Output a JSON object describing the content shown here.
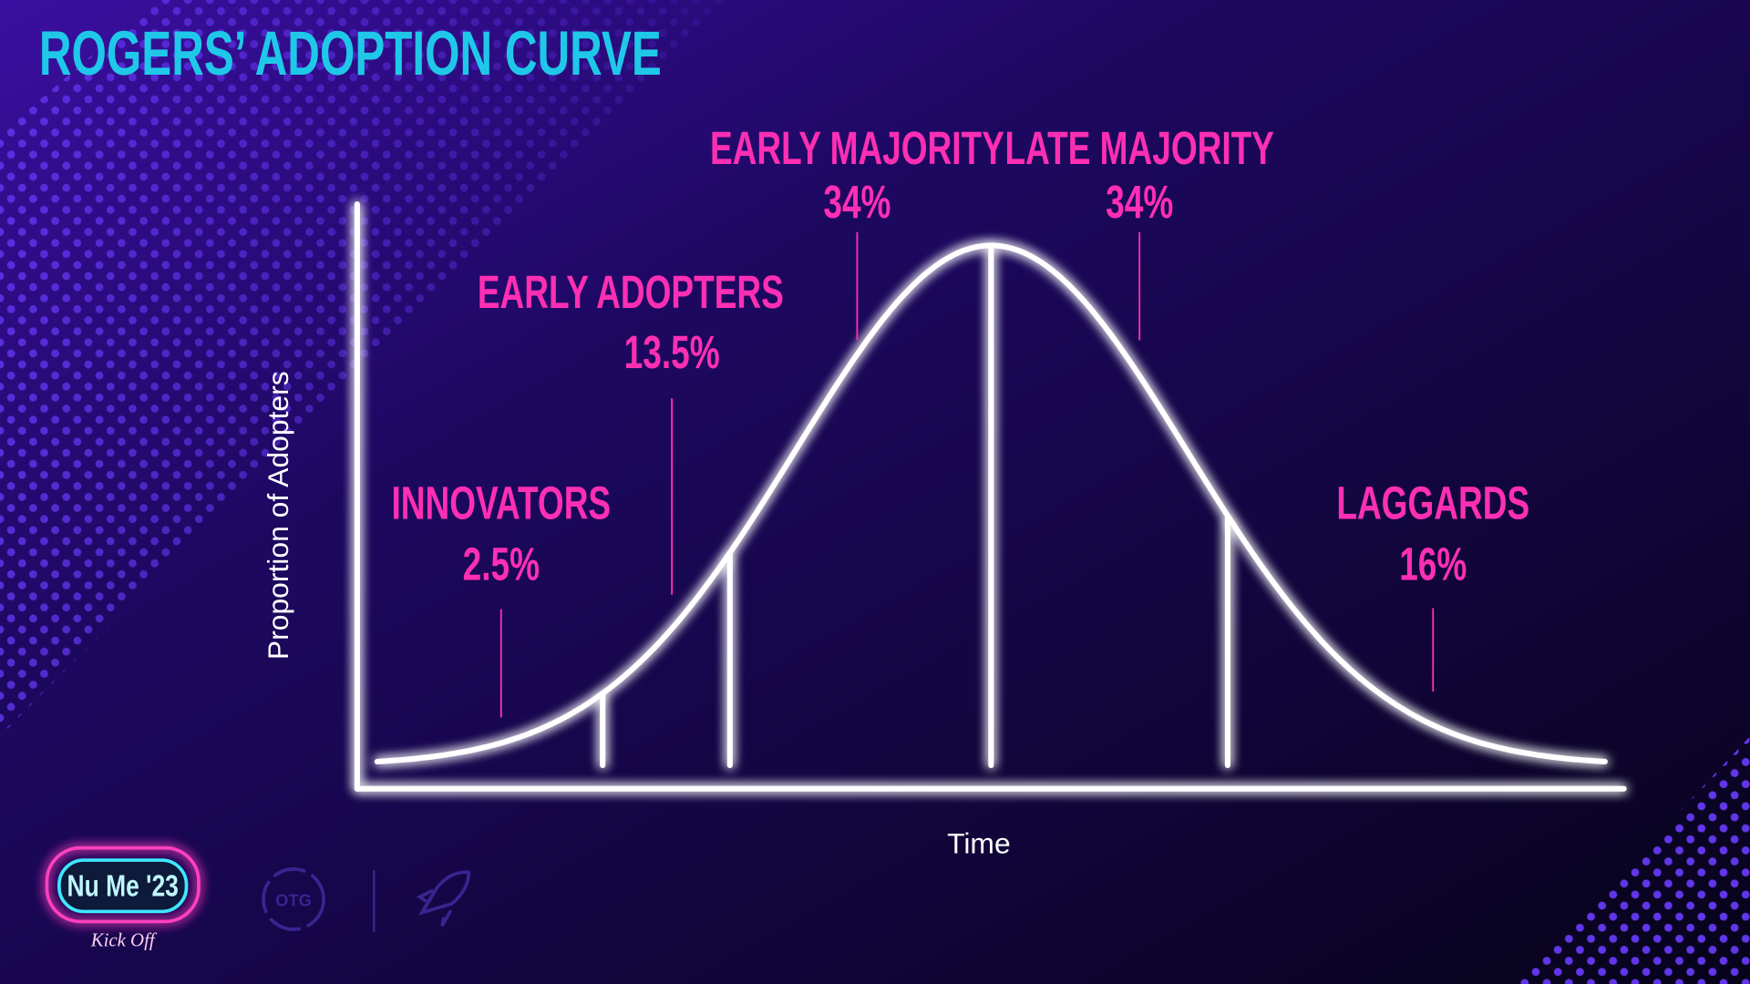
{
  "title": "ROGERS’ ADOPTION CURVE",
  "y_axis_label": "Proportion of Adopters",
  "x_axis_label": "Time",
  "segments": [
    {
      "name": "INNOVATORS",
      "share": "2.5%"
    },
    {
      "name": "EARLY ADOPTERS",
      "share": "13.5%"
    },
    {
      "name": "EARLY MAJORITY",
      "share": "34%"
    },
    {
      "name": "LATE MAJORITY",
      "share": "34%"
    },
    {
      "name": "LAGGARDS",
      "share": "16%"
    }
  ],
  "logo": {
    "event": "Nu Me '23",
    "tagline": "Kick Off",
    "badge": "OTG"
  }
}
